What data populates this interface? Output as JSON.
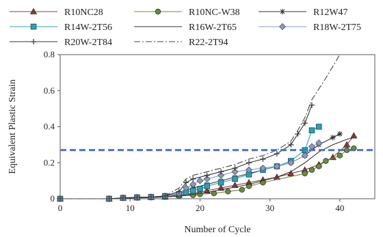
{
  "chart_data": {
    "type": "line",
    "title": "",
    "xlabel": "Number of Cycle",
    "ylabel": "Equivalent Plastic Strain",
    "xlim": [
      0,
      45
    ],
    "ylim": [
      0,
      0.8
    ],
    "xticks": [
      0,
      10,
      20,
      30,
      40
    ],
    "yticks": [
      0,
      0.2,
      0.4,
      0.6,
      0.8
    ],
    "xtick_labels": [
      "0",
      "10",
      "20",
      "30",
      "40"
    ],
    "ytick_labels": [
      "0",
      "0.2",
      "0.4",
      "0.6",
      "0.8"
    ],
    "grid": false,
    "legend_position": "top",
    "threshold_line": {
      "y": 0.27,
      "color": "#4472c4",
      "style": "dashed"
    },
    "series": [
      {
        "name": "R10NC28",
        "marker": "triangle",
        "color": "#8b3a3a",
        "dash": "solid",
        "x": [
          0,
          7,
          9,
          11,
          13,
          15,
          17,
          19,
          21,
          23,
          25,
          27,
          29,
          31,
          33,
          35,
          37,
          39,
          41,
          42
        ],
        "y": [
          0,
          0,
          0.004,
          0.006,
          0.008,
          0.01,
          0.02,
          0.03,
          0.045,
          0.06,
          0.075,
          0.09,
          0.105,
          0.12,
          0.14,
          0.16,
          0.19,
          0.23,
          0.3,
          0.35
        ]
      },
      {
        "name": "R10NC-W38",
        "marker": "circle",
        "color": "#6a8c3a",
        "dash": "solid",
        "x": [
          0,
          7,
          9,
          11,
          13,
          15,
          17,
          19,
          20,
          22,
          24,
          26,
          27,
          29,
          35,
          36,
          37,
          38,
          40,
          41,
          42
        ],
        "y": [
          0,
          0,
          0.003,
          0.005,
          0.007,
          0.01,
          0.015,
          0.02,
          0.025,
          0.03,
          0.04,
          0.05,
          0.07,
          0.09,
          0.14,
          0.16,
          0.18,
          0.21,
          0.24,
          0.27,
          0.28
        ]
      },
      {
        "name": "R12W47",
        "marker": "asterisk",
        "color": "#333333",
        "dash": "solid",
        "x": [
          0,
          7,
          9,
          11,
          13,
          15,
          17,
          19,
          21,
          23,
          25,
          27,
          29,
          31,
          33,
          35,
          37,
          39,
          40
        ],
        "y": [
          0,
          0,
          0.004,
          0.007,
          0.01,
          0.015,
          0.03,
          0.06,
          0.08,
          0.1,
          0.12,
          0.14,
          0.16,
          0.18,
          0.2,
          0.24,
          0.3,
          0.34,
          0.36
        ]
      },
      {
        "name": "R14W-2T56",
        "marker": "square",
        "color": "#2e9fb5",
        "dash": "solid",
        "x": [
          0,
          7,
          9,
          11,
          13,
          15,
          17,
          18,
          19,
          20,
          21,
          23,
          25,
          27,
          29,
          31,
          33,
          35,
          36,
          37
        ],
        "y": [
          0,
          0,
          0.005,
          0.008,
          0.01,
          0.015,
          0.025,
          0.035,
          0.045,
          0.055,
          0.07,
          0.09,
          0.11,
          0.135,
          0.16,
          0.18,
          0.21,
          0.27,
          0.38,
          0.4
        ]
      },
      {
        "name": "R16W-2T65",
        "marker": "none",
        "color": "#333333",
        "dash": "solid",
        "x": [
          0,
          7,
          9,
          11,
          13,
          15,
          17,
          19,
          21,
          23,
          25,
          27,
          29,
          31,
          33,
          35,
          37,
          39,
          41,
          42
        ],
        "y": [
          0,
          0,
          0.003,
          0.005,
          0.007,
          0.01,
          0.015,
          0.025,
          0.035,
          0.05,
          0.065,
          0.08,
          0.1,
          0.12,
          0.15,
          0.2,
          0.26,
          0.3,
          0.33,
          0.34
        ]
      },
      {
        "name": "R18W-2T75",
        "marker": "diamond",
        "color": "#8a9ac8",
        "dash": "solid",
        "x": [
          0,
          7,
          9,
          11,
          13,
          15,
          17,
          18,
          19,
          20,
          21,
          23,
          25,
          27,
          29,
          31,
          33,
          35,
          36,
          37
        ],
        "y": [
          0,
          0,
          0.005,
          0.008,
          0.01,
          0.015,
          0.03,
          0.06,
          0.08,
          0.1,
          0.11,
          0.13,
          0.15,
          0.16,
          0.17,
          0.18,
          0.2,
          0.24,
          0.29,
          0.31
        ]
      },
      {
        "name": "R20W-2T84",
        "marker": "plus",
        "color": "#333333",
        "dash": "solid",
        "x": [
          0,
          7,
          9,
          11,
          13,
          15,
          17,
          18,
          19,
          21,
          23,
          25,
          27,
          29,
          31,
          33,
          34,
          35,
          36
        ],
        "y": [
          0,
          0,
          0.005,
          0.008,
          0.01,
          0.015,
          0.04,
          0.09,
          0.11,
          0.13,
          0.15,
          0.17,
          0.2,
          0.22,
          0.25,
          0.3,
          0.36,
          0.42,
          0.52
        ]
      },
      {
        "name": "R22-2T94",
        "marker": "none",
        "color": "#444444",
        "dash": "dashdot",
        "x": [
          0,
          7,
          9,
          11,
          13,
          15,
          17,
          18,
          19,
          21,
          23,
          25,
          27,
          29,
          31,
          33,
          34,
          35,
          36,
          38,
          40
        ],
        "y": [
          0,
          0,
          0.005,
          0.008,
          0.01,
          0.015,
          0.06,
          0.11,
          0.13,
          0.15,
          0.17,
          0.19,
          0.22,
          0.24,
          0.27,
          0.32,
          0.38,
          0.45,
          0.55,
          0.67,
          0.8
        ]
      }
    ]
  }
}
